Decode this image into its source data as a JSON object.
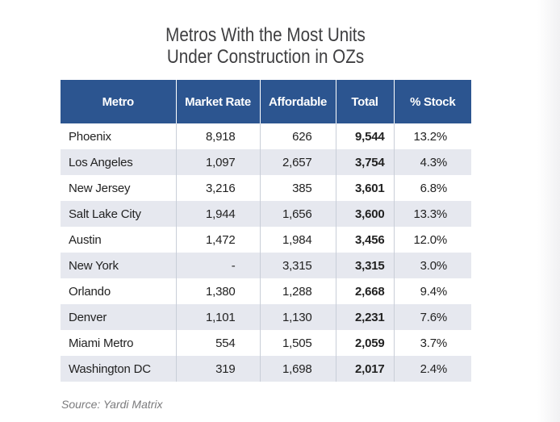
{
  "title": {
    "line1": "Metros With the Most Units",
    "line2": "Under Construction in OZs"
  },
  "chart_data": {
    "type": "table",
    "columns": [
      "Metro",
      "Market Rate",
      "Affordable",
      "Total",
      "% Stock"
    ],
    "rows": [
      {
        "metro": "Phoenix",
        "market_rate": "8,918",
        "affordable": "626",
        "total": "9,544",
        "pct_stock": "13.2%"
      },
      {
        "metro": "Los Angeles",
        "market_rate": "1,097",
        "affordable": "2,657",
        "total": "3,754",
        "pct_stock": "4.3%"
      },
      {
        "metro": "New Jersey",
        "market_rate": "3,216",
        "affordable": "385",
        "total": "3,601",
        "pct_stock": "6.8%"
      },
      {
        "metro": "Salt Lake City",
        "market_rate": "1,944",
        "affordable": "1,656",
        "total": "3,600",
        "pct_stock": "13.3%"
      },
      {
        "metro": "Austin",
        "market_rate": "1,472",
        "affordable": "1,984",
        "total": "3,456",
        "pct_stock": "12.0%"
      },
      {
        "metro": "New York",
        "market_rate": "-",
        "affordable": "3,315",
        "total": "3,315",
        "pct_stock": "3.0%"
      },
      {
        "metro": "Orlando",
        "market_rate": "1,380",
        "affordable": "1,288",
        "total": "2,668",
        "pct_stock": "9.4%"
      },
      {
        "metro": "Denver",
        "market_rate": "1,101",
        "affordable": "1,130",
        "total": "2,231",
        "pct_stock": "7.6%"
      },
      {
        "metro": "Miami Metro",
        "market_rate": "554",
        "affordable": "1,505",
        "total": "2,059",
        "pct_stock": "3.7%"
      },
      {
        "metro": "Washington DC",
        "market_rate": "319",
        "affordable": "1,698",
        "total": "2,017",
        "pct_stock": "2.4%"
      }
    ]
  },
  "source": "Source: Yardi Matrix",
  "colors": {
    "header_bg": "#2c5590",
    "header_text": "#ffffff",
    "alt_row": "#e6e8ef",
    "title_text": "#3f3f41",
    "source_text": "#7b7b7d"
  }
}
